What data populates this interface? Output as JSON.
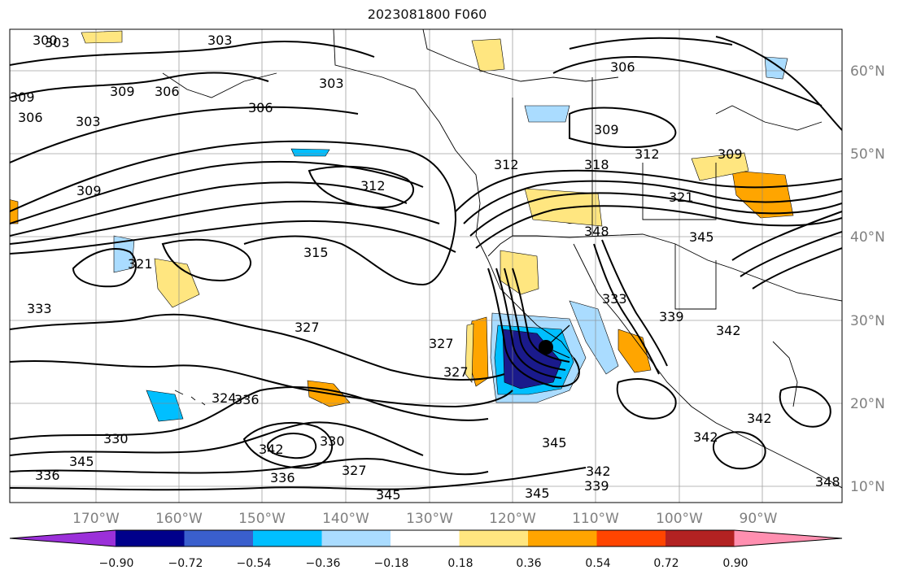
{
  "title": "2023081800 F060",
  "map": {
    "longitude_labels": [
      "170°W",
      "160°W",
      "150°W",
      "140°W",
      "130°W",
      "120°W",
      "110°W",
      "100°W",
      "90°W"
    ],
    "latitude_labels": [
      "60°N",
      "50°N",
      "40°N",
      "30°N",
      "20°N",
      "10°N"
    ],
    "gridlines": true,
    "projection": "cylindrical",
    "storm_marker": "filled-circle",
    "contour_labels": [
      "300",
      "303",
      "306",
      "309",
      "312",
      "315",
      "318",
      "321",
      "324",
      "327",
      "330",
      "333",
      "336",
      "339",
      "342",
      "345",
      "348"
    ],
    "contour_color": "#000000",
    "shading_colors": {
      "strong_negative": "#1a1a8c",
      "moderate_negative": "#00bfff",
      "weak_negative": "#aadcff",
      "weak_positive": "#ffe680",
      "moderate_positive": "#ffa500",
      "strong_positive": "#ff4500"
    }
  },
  "colorbar": {
    "tick_labels": [
      "−0.90",
      "−0.72",
      "−0.54",
      "−0.36",
      "−0.18",
      "0.18",
      "0.36",
      "0.54",
      "0.72",
      "0.90"
    ],
    "colors": [
      "#9b30d9",
      "#00008b",
      "#3a5fcd",
      "#00bfff",
      "#aadcff",
      "#ffffff",
      "#ffe680",
      "#ffa500",
      "#ff4500",
      "#b22222",
      "#ff8fb0"
    ],
    "extend": "both"
  }
}
